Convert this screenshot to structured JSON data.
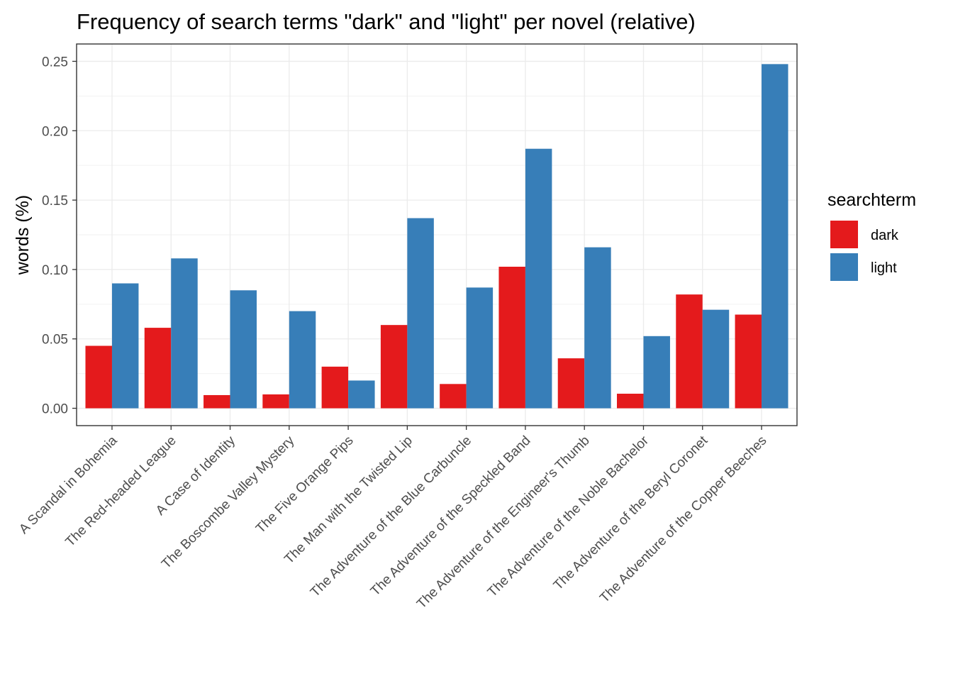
{
  "chart_data": {
    "type": "bar",
    "title": "Frequency of search terms \"dark\" and \"light\" per novel (relative)",
    "xlabel": "",
    "ylabel": "words (%)",
    "ylim": [
      -0.0125,
      0.2625
    ],
    "yticks": [
      0.0,
      0.05,
      0.1,
      0.15,
      0.2,
      0.25
    ],
    "ytick_labels": [
      "0.00",
      "0.05",
      "0.10",
      "0.15",
      "0.20",
      "0.25"
    ],
    "grid": true,
    "legend_position": "right",
    "legend_title": "searchterm",
    "categories": [
      "A Scandal in Bohemia",
      "The Red-headed League",
      "A Case of Identity",
      "The Boscombe Valley Mystery",
      "The Five Orange Pips",
      "The Man with the Twisted Lip",
      "The Adventure of the Blue Carbuncle",
      "The Adventure of the Speckled Band",
      "The Adventure of the Engineer's Thumb",
      "The Adventure of the Noble Bachelor",
      "The Adventure of the Beryl Coronet",
      "The Adventure of the Copper Beeches"
    ],
    "series": [
      {
        "name": "dark",
        "color": "#e41a1c",
        "values": [
          0.045,
          0.058,
          0.0095,
          0.01,
          0.03,
          0.06,
          0.0175,
          0.102,
          0.036,
          0.0105,
          0.082,
          0.0675
        ]
      },
      {
        "name": "light",
        "color": "#377eb8",
        "values": [
          0.09,
          0.108,
          0.085,
          0.07,
          0.02,
          0.137,
          0.087,
          0.187,
          0.116,
          0.052,
          0.071,
          0.248
        ]
      }
    ]
  }
}
